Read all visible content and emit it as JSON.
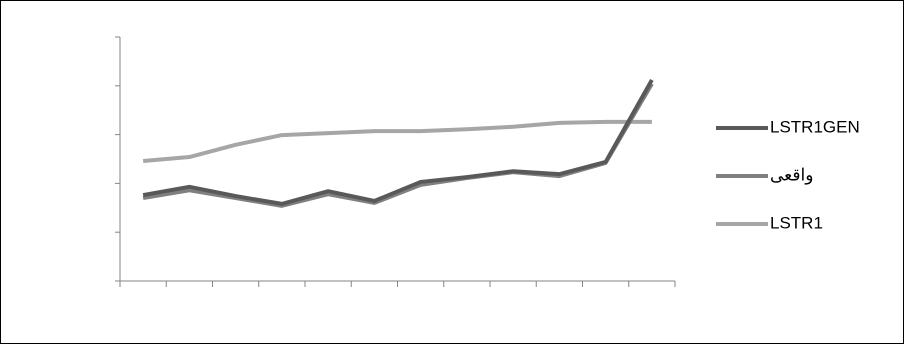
{
  "chart_data": {
    "type": "line",
    "categories": [
      null,
      null,
      null,
      null,
      null,
      null,
      null,
      null,
      null,
      null,
      null,
      null
    ],
    "series": [
      {
        "name": "LSTR1GEN",
        "color": "#595959",
        "values": [
          1.76,
          1.93,
          1.74,
          1.58,
          1.84,
          1.64,
          2.03,
          2.13,
          2.25,
          2.19,
          2.44,
          4.12
        ]
      },
      {
        "name": "واقعی",
        "color": "#808080",
        "values": [
          1.7,
          1.86,
          1.7,
          1.54,
          1.78,
          1.6,
          1.97,
          2.11,
          2.23,
          2.15,
          2.42,
          4.04
        ]
      },
      {
        "name": "LSTR1",
        "color": "#a6a6a6",
        "values": [
          2.46,
          2.54,
          2.79,
          2.99,
          3.03,
          3.07,
          3.07,
          3.11,
          3.16,
          3.24,
          3.26,
          3.26
        ]
      }
    ],
    "ylim": [
      0,
      5
    ],
    "yticks": [
      0,
      1,
      2,
      3,
      4,
      5
    ],
    "legend": "right"
  }
}
